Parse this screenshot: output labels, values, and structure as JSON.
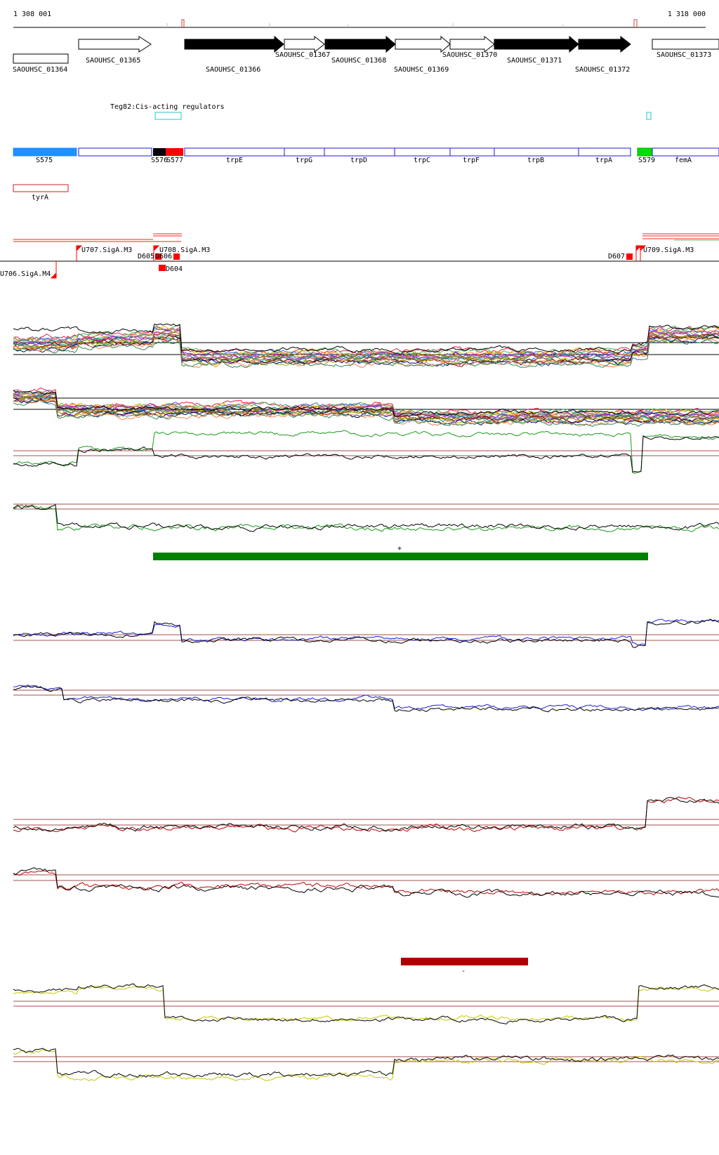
{
  "coords": {
    "start": "1 308 001",
    "end": "1 318 000"
  },
  "genes": [
    {
      "label": "SAOUHSC_01364",
      "strand": "box",
      "fill": "white"
    },
    {
      "label": "SAOUHSC_01365",
      "strand": "+",
      "fill": "white"
    },
    {
      "label": "SAOUHSC_01366",
      "strand": "+",
      "fill": "black"
    },
    {
      "label": "SAOUHSC_01367",
      "strand": "+",
      "fill": "white"
    },
    {
      "label": "SAOUHSC_01368",
      "strand": "+",
      "fill": "black"
    },
    {
      "label": "SAOUHSC_01369",
      "strand": "+",
      "fill": "white"
    },
    {
      "label": "SAOUHSC_01370",
      "strand": "+",
      "fill": "white"
    },
    {
      "label": "SAOUHSC_01371",
      "strand": "+",
      "fill": "black"
    },
    {
      "label": "SAOUHSC_01372",
      "strand": "+",
      "fill": "black"
    },
    {
      "label": "SAOUHSC_01373",
      "strand": "box",
      "fill": "white"
    }
  ],
  "regulator_label": "Teg82:Cis-acting regulators",
  "segments": [
    "S575",
    "S576",
    "S577",
    "trpE",
    "trpG",
    "trpD",
    "trpC",
    "trpF",
    "trpB",
    "trpA",
    "S579",
    "femA"
  ],
  "tyra_label": "tyrA",
  "promoters": [
    "U707.SigA.M3",
    "U708.SigA.M3",
    "D605",
    "D606",
    "D604",
    "D607",
    "U709.SigA.M3",
    "U706.SigA.M4"
  ],
  "markers": {
    "plus": "+",
    "minus": "-"
  },
  "colors": {
    "blue_segment": "#1e90ff",
    "green_segment": "#00dd00",
    "red_segment": "#ff0000",
    "green_bar": "#008000",
    "red_bar": "#b00000",
    "track_blue": "#1a1adc",
    "track_red": "#c00000",
    "track_green": "#1a9a1a",
    "track_yellow": "#c8c800",
    "threshold": "#a05050"
  }
}
